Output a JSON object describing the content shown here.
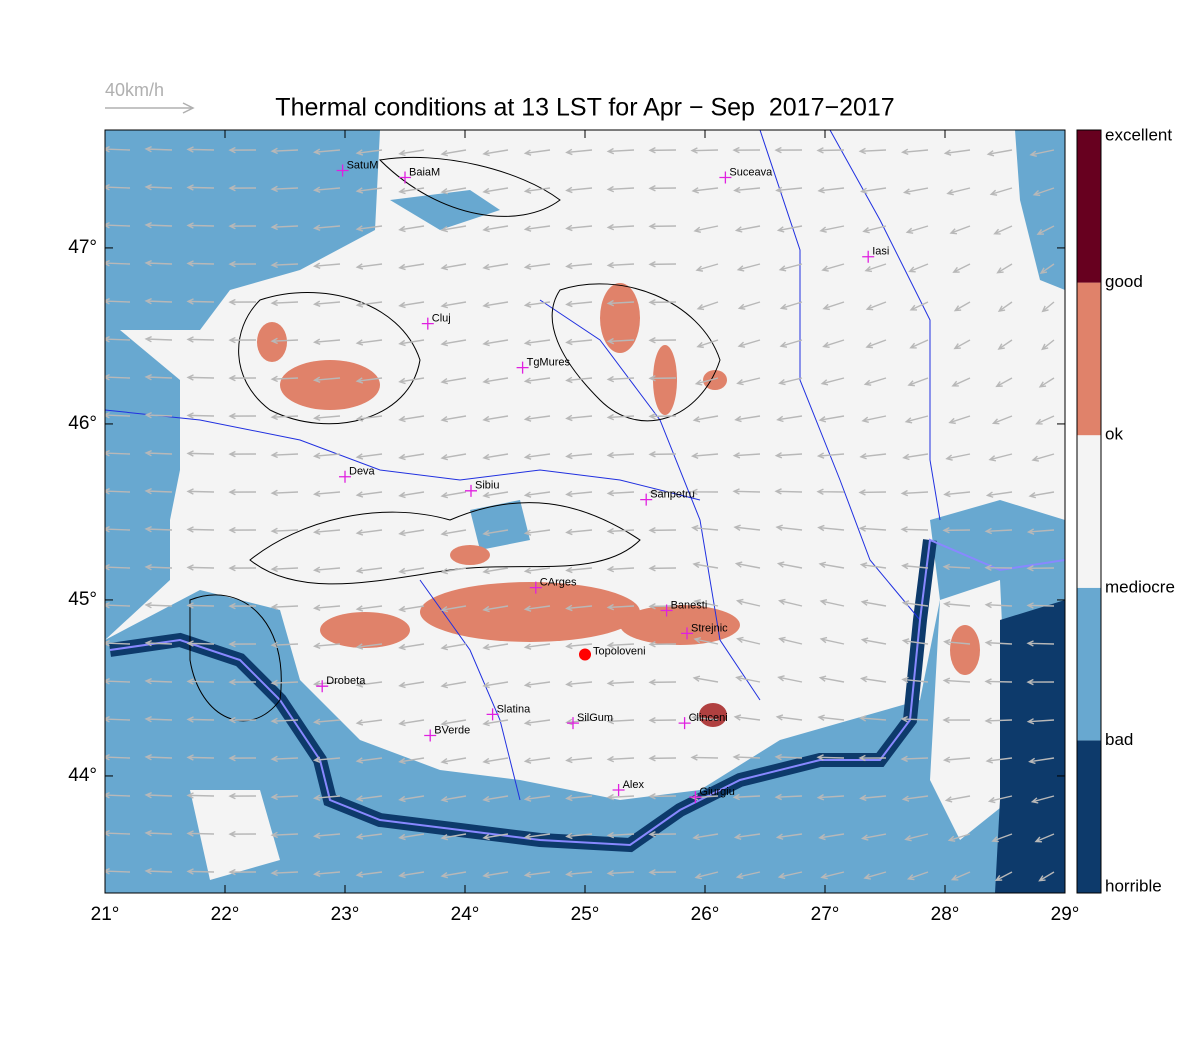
{
  "title": "Thermal conditions at 13 LST for Apr − Sep  2017−2017",
  "wind_scale": "40km/h",
  "map": {
    "xlim": [
      21,
      29
    ],
    "ylim": [
      43.335,
      47.67
    ],
    "xticks": [
      {
        "value": 21,
        "label": "21°"
      },
      {
        "value": 22,
        "label": "22°"
      },
      {
        "value": 23,
        "label": "23°"
      },
      {
        "value": 24,
        "label": "24°"
      },
      {
        "value": 25,
        "label": "25°"
      },
      {
        "value": 26,
        "label": "26°"
      },
      {
        "value": 27,
        "label": "27°"
      },
      {
        "value": 28,
        "label": "28°"
      },
      {
        "value": 29,
        "label": "29°"
      }
    ],
    "yticks": [
      {
        "value": 44,
        "label": "44°"
      },
      {
        "value": 45,
        "label": "45°"
      },
      {
        "value": 46,
        "label": "46°"
      },
      {
        "value": 47,
        "label": "47°"
      }
    ],
    "city_color": "#e020e0",
    "cities": [
      {
        "name": "SatuM",
        "lon": 22.98,
        "lat": 47.44
      },
      {
        "name": "BaiaM",
        "lon": 23.5,
        "lat": 47.4
      },
      {
        "name": "Suceava",
        "lon": 26.17,
        "lat": 47.4
      },
      {
        "name": "Iasi",
        "lon": 27.36,
        "lat": 46.95
      },
      {
        "name": "Cluj",
        "lon": 23.69,
        "lat": 46.57
      },
      {
        "name": "TgMures",
        "lon": 24.48,
        "lat": 46.32
      },
      {
        "name": "Deva",
        "lon": 23.0,
        "lat": 45.7
      },
      {
        "name": "Sibiu",
        "lon": 24.05,
        "lat": 45.62
      },
      {
        "name": "Sanpetru",
        "lon": 25.51,
        "lat": 45.57
      },
      {
        "name": "CArges",
        "lon": 24.59,
        "lat": 45.07
      },
      {
        "name": "Banesti",
        "lon": 25.68,
        "lat": 44.94
      },
      {
        "name": "Strejnic",
        "lon": 25.85,
        "lat": 44.81
      },
      {
        "name": "Drobeta",
        "lon": 22.81,
        "lat": 44.51
      },
      {
        "name": "Slatina",
        "lon": 24.23,
        "lat": 44.35
      },
      {
        "name": "SilGum",
        "lon": 24.9,
        "lat": 44.3
      },
      {
        "name": "Clinceni",
        "lon": 25.83,
        "lat": 44.3
      },
      {
        "name": "BVerde",
        "lon": 23.71,
        "lat": 44.23
      },
      {
        "name": "Alex",
        "lon": 25.28,
        "lat": 43.92
      },
      {
        "name": "Giurgiu",
        "lon": 25.92,
        "lat": 43.88
      }
    ],
    "site": {
      "name": "Topoloveni",
      "lon": 25.0,
      "lat": 44.69,
      "color": "#ff0000"
    }
  },
  "legend": {
    "labels": [
      "horrible",
      "bad",
      "mediocre",
      "ok",
      "good",
      "excellent"
    ],
    "colors": [
      "#0d3a6b",
      "#68a8d0",
      "#f4f4f4",
      "#e0826a",
      "#67001f"
    ]
  }
}
